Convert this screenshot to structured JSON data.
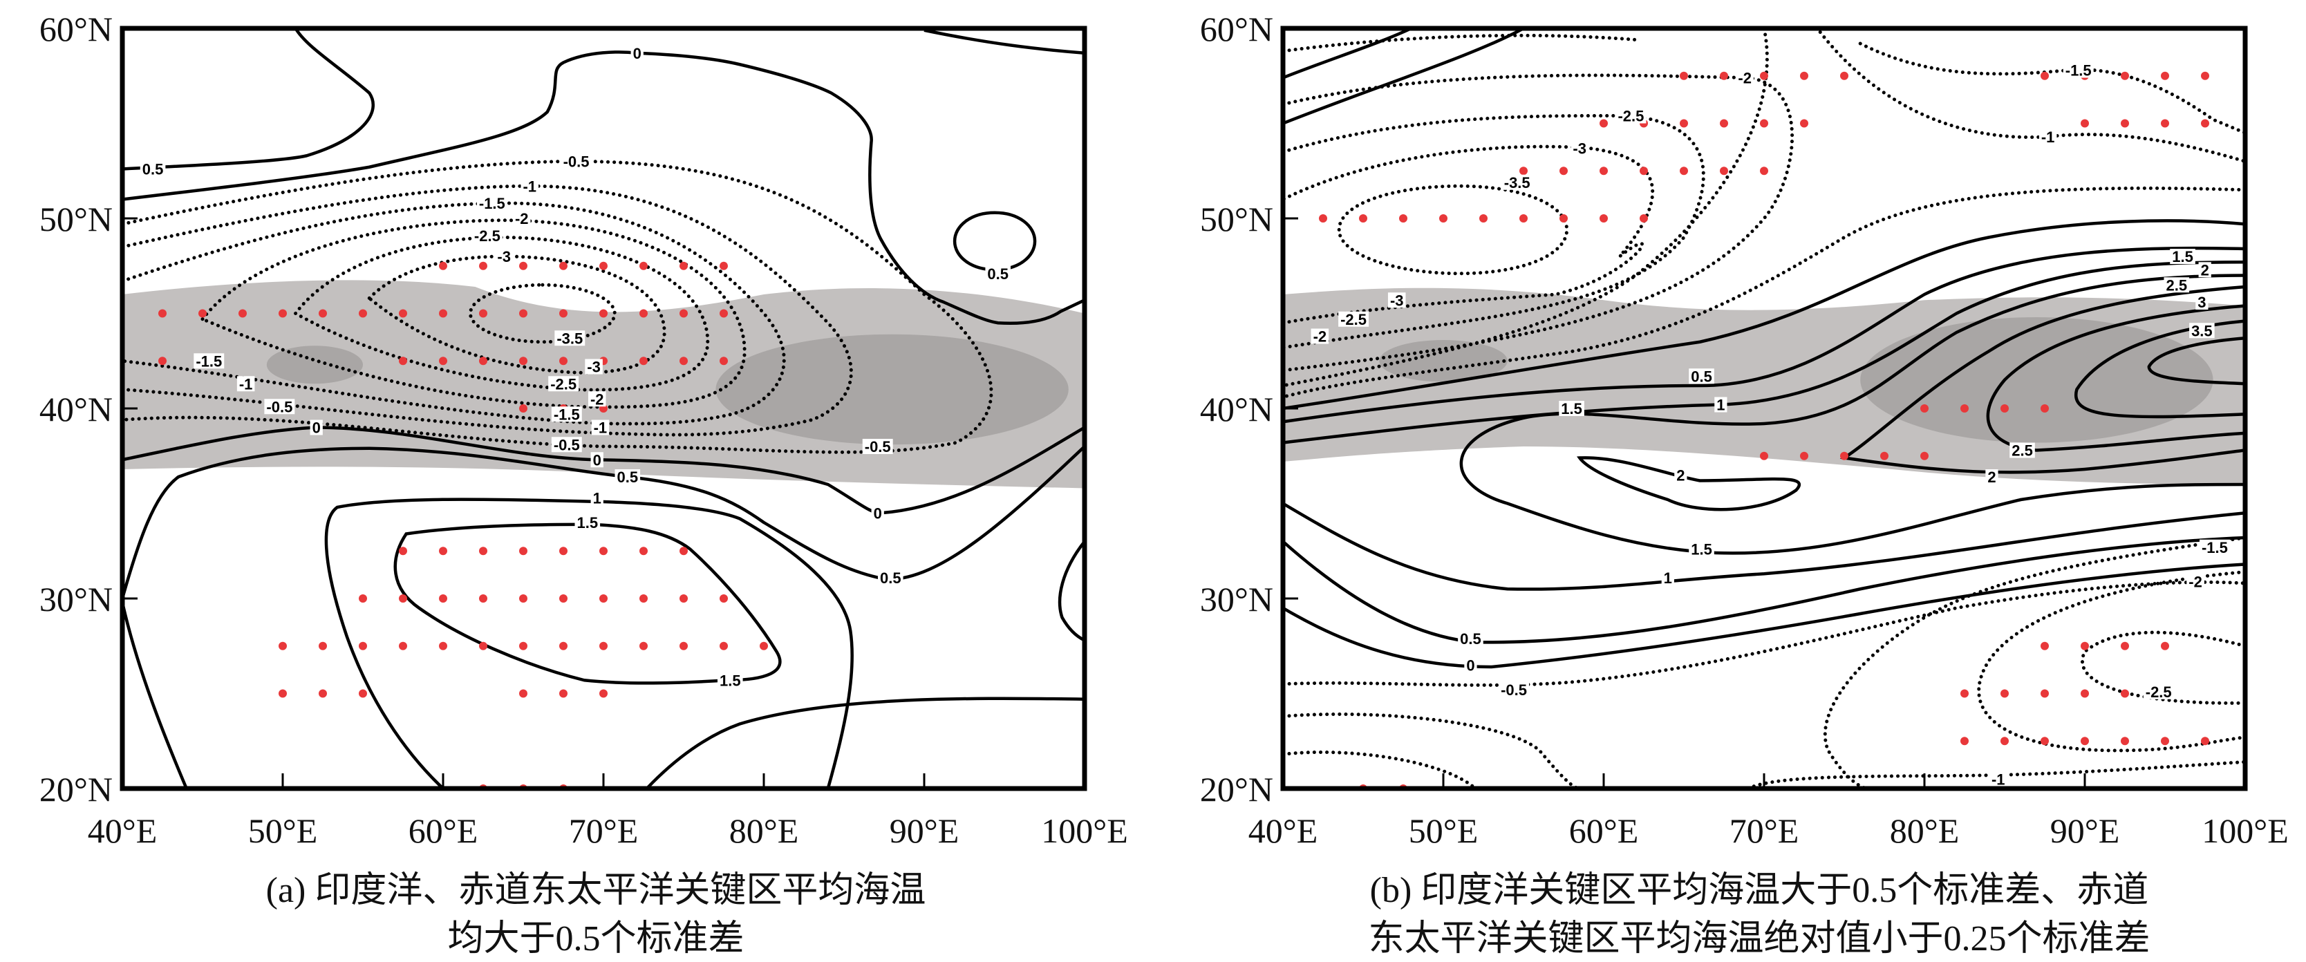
{
  "colors": {
    "band_light": "#c3c0bf",
    "band_dark": "#a9a6a5",
    "dots": "#e8383a",
    "lines": "#000000"
  },
  "chart_data": [
    {
      "type": "contour",
      "panel": "a",
      "caption_lines": [
        "(a) 印度洋、赤道东太平洋关键区平均海温",
        "均大于0.5个标准差"
      ],
      "xlim": [
        40,
        100
      ],
      "ylim": [
        20,
        60
      ],
      "xticks": [
        40,
        50,
        60,
        70,
        80,
        90,
        100
      ],
      "xtick_labels": [
        "40°E",
        "50°E",
        "60°E",
        "70°E",
        "80°E",
        "90°E",
        "100°E"
      ],
      "yticks": [
        20,
        30,
        40,
        50,
        60
      ],
      "ytick_labels": [
        "20°N",
        "30°N",
        "40°N",
        "50°N",
        "60°N"
      ],
      "contour_labels": [
        {
          "text": "0.5",
          "lon": 41.9,
          "lat": 52.6
        },
        {
          "text": "0",
          "lon": 72.1,
          "lat": 58.7
        },
        {
          "text": "-0.5",
          "lon": 68.3,
          "lat": 53.0
        },
        {
          "text": "-1",
          "lon": 65.4,
          "lat": 51.7
        },
        {
          "text": "-1.5",
          "lon": 64.0,
          "lat": 50.8
        },
        {
          "text": "-2",
          "lon": 63.8,
          "lat": 50.0
        },
        {
          "text": "-2.5",
          "lon": 63.7,
          "lat": 49.1
        },
        {
          "text": "-3",
          "lon": 63.8,
          "lat": 48.0
        },
        {
          "text": "0.5",
          "lon": 94.6,
          "lat": 47.1
        },
        {
          "text": "-3.5",
          "lon": 67.9,
          "lat": 43.7
        },
        {
          "text": "-1.5",
          "lon": 45.4,
          "lat": 42.5
        },
        {
          "text": "-1",
          "lon": 47.7,
          "lat": 41.3
        },
        {
          "text": "-0.5",
          "lon": 49.8,
          "lat": 40.1
        },
        {
          "text": "0",
          "lon": 52.1,
          "lat": 39.0
        },
        {
          "text": "-3",
          "lon": 69.4,
          "lat": 42.2
        },
        {
          "text": "-2.5",
          "lon": 69.4,
          "lat": 41.3
        },
        {
          "text": "-2",
          "lon": 69.6,
          "lat": 40.5
        },
        {
          "text": "-1.5",
          "lon": 69.6,
          "lat": 39.7
        },
        {
          "text": "-1",
          "lon": 69.8,
          "lat": 39.0
        },
        {
          "text": "-0.5",
          "lon": 69.6,
          "lat": 38.1
        },
        {
          "text": "0",
          "lon": 69.6,
          "lat": 37.3
        },
        {
          "text": "-0.5",
          "lon": 87.1,
          "lat": 38.0
        },
        {
          "text": "0.5",
          "lon": 71.5,
          "lat": 36.4
        },
        {
          "text": "1",
          "lon": 69.6,
          "lat": 35.3
        },
        {
          "text": "0",
          "lon": 87.1,
          "lat": 34.5
        },
        {
          "text": "1.5",
          "lon": 69.0,
          "lat": 34.0
        },
        {
          "text": "0.5",
          "lon": 87.9,
          "lat": 31.1
        },
        {
          "text": "1.5",
          "lon": 77.9,
          "lat": 25.7
        }
      ],
      "significant_points": [
        {
          "lat": 47.5,
          "lons": [
            60,
            62.5,
            65,
            67.5,
            70,
            72.5,
            75,
            77.5
          ]
        },
        {
          "lat": 45,
          "lons": [
            42.5,
            45,
            47.5,
            50,
            52.5,
            55,
            57.5,
            60,
            62.5,
            65,
            67.5,
            70,
            72.5,
            75,
            77.5
          ]
        },
        {
          "lat": 42.5,
          "lons": [
            42.5,
            57.5,
            60,
            62.5,
            65,
            67.5,
            70,
            72.5,
            75,
            77.5
          ]
        },
        {
          "lat": 40,
          "lons": [
            65,
            67.5,
            70
          ]
        },
        {
          "lat": 32.5,
          "lons": [
            57.5,
            60,
            62.5,
            65,
            67.5,
            70,
            72.5,
            75
          ]
        },
        {
          "lat": 30,
          "lons": [
            55,
            57.5,
            60,
            62.5,
            65,
            67.5,
            70,
            72.5,
            75,
            77.5
          ]
        },
        {
          "lat": 27.5,
          "lons": [
            50,
            52.5,
            55,
            57.5,
            60,
            62.5,
            65,
            67.5,
            70,
            72.5,
            75,
            77.5,
            80
          ]
        },
        {
          "lat": 25,
          "lons": [
            50,
            52.5,
            55,
            65,
            67.5,
            70
          ]
        },
        {
          "lat": 20,
          "lons": [
            62.5,
            65,
            67.5
          ]
        }
      ]
    },
    {
      "type": "contour",
      "panel": "b",
      "caption_lines": [
        "(b) 印度洋关键区平均海温大于0.5个标准差、赤道",
        "东太平洋关键区平均海温绝对值小于0.25个标准差"
      ],
      "xlim": [
        40,
        100
      ],
      "ylim": [
        20,
        60
      ],
      "xticks": [
        40,
        50,
        60,
        70,
        80,
        90,
        100
      ],
      "xtick_labels": [
        "40°E",
        "50°E",
        "60°E",
        "70°E",
        "80°E",
        "90°E",
        "100°E"
      ],
      "yticks": [
        20,
        30,
        40,
        50,
        60
      ],
      "ytick_labels": [
        "20°N",
        "30°N",
        "40°N",
        "50°N",
        "60°N"
      ],
      "contour_labels": [
        {
          "text": "-2",
          "lon": 68.8,
          "lat": 57.4
        },
        {
          "text": "-1.5",
          "lon": 89.6,
          "lat": 57.8
        },
        {
          "text": "-2.5",
          "lon": 61.7,
          "lat": 55.4
        },
        {
          "text": "-1",
          "lon": 87.7,
          "lat": 54.3
        },
        {
          "text": "-3",
          "lon": 58.5,
          "lat": 53.7
        },
        {
          "text": "-3.5",
          "lon": 54.6,
          "lat": 51.9
        },
        {
          "text": "-3",
          "lon": 47.1,
          "lat": 45.7
        },
        {
          "text": "-2.5",
          "lon": 44.4,
          "lat": 44.7
        },
        {
          "text": "-2",
          "lon": 42.3,
          "lat": 43.8
        },
        {
          "text": "1.5",
          "lon": 96.1,
          "lat": 48.0
        },
        {
          "text": "2",
          "lon": 96.7,
          "lat": 47.3
        },
        {
          "text": "2.5",
          "lon": 97.3,
          "lat": 46.5
        },
        {
          "text": "3",
          "lon": 97.3,
          "lat": 45.6
        },
        {
          "text": "3.5",
          "lon": 97.3,
          "lat": 44.1
        },
        {
          "text": "0.5",
          "lon": 66.1,
          "lat": 41.7
        },
        {
          "text": "1",
          "lon": 67.3,
          "lat": 40.2
        },
        {
          "text": "1.5",
          "lon": 58.0,
          "lat": 40.0
        },
        {
          "text": "2",
          "lon": 64.8,
          "lat": 36.5
        },
        {
          "text": "2.5",
          "lon": 86.1,
          "lat": 37.8
        },
        {
          "text": "2",
          "lon": 84.2,
          "lat": 36.4
        },
        {
          "text": "1.5",
          "lon": 66.1,
          "lat": 32.6
        },
        {
          "text": "1",
          "lon": 64.0,
          "lat": 31.1
        },
        {
          "text": "-1.5",
          "lon": 98.1,
          "lat": 32.7
        },
        {
          "text": "-2",
          "lon": 96.9,
          "lat": 30.9
        },
        {
          "text": "0.5",
          "lon": 51.7,
          "lat": 27.9
        },
        {
          "text": "0",
          "lon": 51.7,
          "lat": 26.5
        },
        {
          "text": "-0.5",
          "lon": 54.4,
          "lat": 25.2
        },
        {
          "text": "-2.5",
          "lon": 94.6,
          "lat": 25.1
        },
        {
          "text": "-1",
          "lon": 84.6,
          "lat": 20.5
        }
      ],
      "significant_points": [
        {
          "lat": 57.5,
          "lons": [
            65,
            67.5,
            70,
            72.5,
            75,
            87.5,
            90,
            92.5,
            95,
            97.5
          ]
        },
        {
          "lat": 55,
          "lons": [
            60,
            62.5,
            65,
            67.5,
            70,
            72.5,
            90,
            92.5,
            95,
            97.5
          ]
        },
        {
          "lat": 52.5,
          "lons": [
            55,
            57.5,
            60,
            62.5,
            65,
            67.5,
            70
          ]
        },
        {
          "lat": 50,
          "lons": [
            42.5,
            45,
            47.5,
            50,
            52.5,
            55,
            57.5,
            60,
            62.5
          ]
        },
        {
          "lat": 40,
          "lons": [
            80,
            82.5,
            85,
            87.5
          ]
        },
        {
          "lat": 37.5,
          "lons": [
            70,
            72.5,
            75,
            77.5,
            80
          ]
        },
        {
          "lat": 27.5,
          "lons": [
            87.5,
            90,
            92.5,
            95
          ]
        },
        {
          "lat": 25,
          "lons": [
            82.5,
            85,
            87.5,
            90,
            92.5,
            95
          ]
        },
        {
          "lat": 22.5,
          "lons": [
            82.5,
            85,
            87.5,
            90,
            92.5,
            95,
            97.5
          ]
        },
        {
          "lat": 20,
          "lons": [
            45,
            47.5
          ]
        }
      ]
    }
  ]
}
